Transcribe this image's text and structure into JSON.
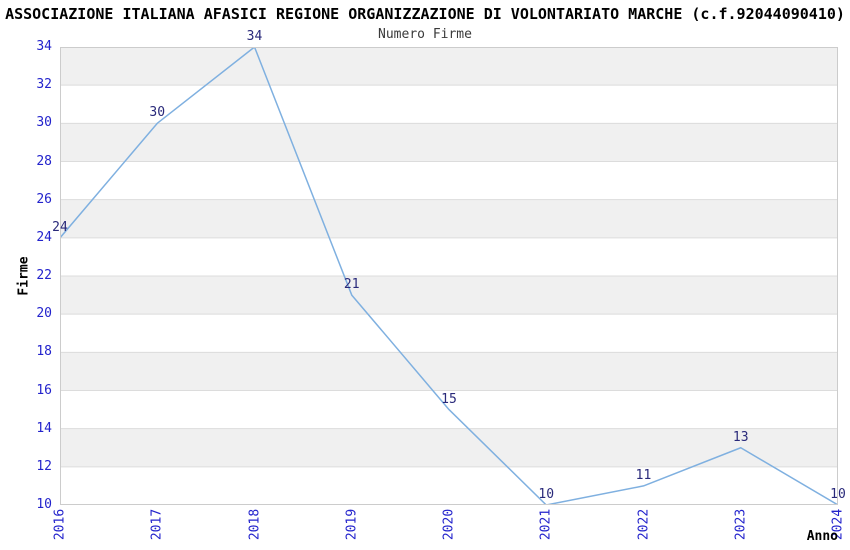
{
  "header": {
    "title": "ASSOCIAZIONE ITALIANA AFASICI REGIONE ORGANIZZAZIONE DI VOLONTARIATO MARCHE (c.f.92044090410)",
    "subtitle": "Numero Firme"
  },
  "chart_data": {
    "type": "line",
    "title": "Numero Firme",
    "xlabel": "Anno",
    "ylabel": "Firme",
    "categories": [
      "2016",
      "2017",
      "2018",
      "2019",
      "2020",
      "2021",
      "2022",
      "2023",
      "2024"
    ],
    "values": [
      24,
      30,
      34,
      21,
      15,
      10,
      11,
      13,
      10
    ],
    "point_labels": [
      "24",
      "30",
      "34",
      "21",
      "15",
      "10",
      "11",
      "13",
      "10"
    ],
    "ylim": [
      10,
      34
    ],
    "ytick_step": 2,
    "yticks": [
      10,
      12,
      14,
      16,
      18,
      20,
      22,
      24,
      26,
      28,
      30,
      32,
      34
    ],
    "legend": "none",
    "grid": "alternating-horizontal-bands",
    "colors": {
      "line": "#7fb0e0",
      "tick_label": "#2323cc",
      "point_label": "#29297a",
      "band_fill": "#f0f0f0",
      "gridline": "#dcdcdc",
      "spine": "#cccccc",
      "background": "#ffffff"
    }
  }
}
